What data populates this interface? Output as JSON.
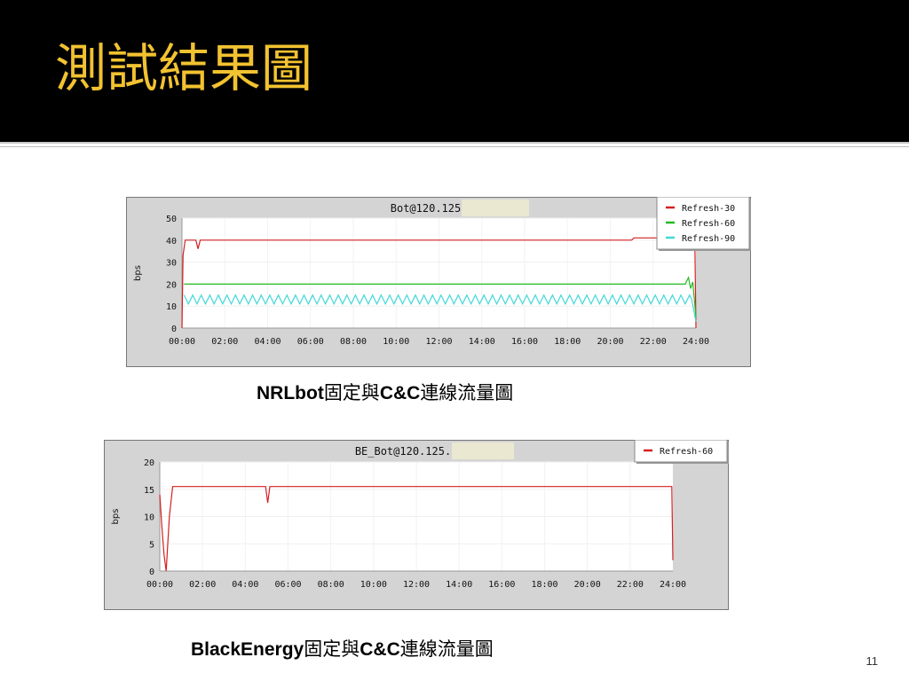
{
  "slide": {
    "title": "測試結果圖",
    "page_number": "11",
    "accent_color": "#f2c230",
    "background_color": "#000000"
  },
  "captions": [
    {
      "part1": "NRLbot",
      "part2": "固定與",
      "part3": "C&C",
      "part4": "連線流量圖"
    },
    {
      "part1": "BlackEnergy",
      "part2": "固定與",
      "part3": "C&C",
      "part4": "連線流量圖"
    }
  ],
  "chart_data": [
    {
      "type": "line",
      "title": "Bot@120.125",
      "ylabel": "bps",
      "xlabel": "",
      "x_ticks": [
        "00:00",
        "02:00",
        "04:00",
        "06:00",
        "08:00",
        "10:00",
        "12:00",
        "14:00",
        "16:00",
        "18:00",
        "20:00",
        "22:00",
        "24:00"
      ],
      "y_ticks": [
        0,
        10,
        20,
        30,
        40,
        50
      ],
      "xlim": [
        0,
        24
      ],
      "ylim": [
        0,
        50
      ],
      "grid": true,
      "legend_position": "top-right",
      "series": [
        {
          "name": "Refresh-30",
          "color": "#d42020",
          "points": [
            [
              0,
              0
            ],
            [
              0.05,
              33
            ],
            [
              0.15,
              40
            ],
            [
              0.65,
              40
            ],
            [
              0.75,
              36
            ],
            [
              0.85,
              40
            ],
            [
              21.0,
              40
            ],
            [
              21.1,
              41
            ],
            [
              23.9,
              41
            ],
            [
              23.95,
              38
            ],
            [
              24.0,
              0
            ]
          ]
        },
        {
          "name": "Refresh-60",
          "color": "#22bb22",
          "points": [
            [
              0.1,
              20
            ],
            [
              23.5,
              20
            ],
            [
              23.65,
              23
            ],
            [
              23.75,
              18
            ],
            [
              23.85,
              21
            ],
            [
              24.0,
              5
            ]
          ]
        },
        {
          "name": "Refresh-90",
          "color": "#44d8d8",
          "oscillation": {
            "start": 0.1,
            "end": 23.8,
            "period": 0.4,
            "low": 11,
            "high": 15
          },
          "points": [
            [
              23.8,
              13
            ],
            [
              24.0,
              3
            ]
          ]
        }
      ]
    },
    {
      "type": "line",
      "title": "BE_Bot@120.125.",
      "ylabel": "bps",
      "xlabel": "",
      "x_ticks": [
        "00:00",
        "02:00",
        "04:00",
        "06:00",
        "08:00",
        "10:00",
        "12:00",
        "14:00",
        "16:00",
        "18:00",
        "20:00",
        "22:00",
        "24:00"
      ],
      "y_ticks": [
        0,
        5,
        10,
        15,
        20
      ],
      "xlim": [
        0,
        24
      ],
      "ylim": [
        0,
        20
      ],
      "grid": true,
      "legend_position": "top-right",
      "series": [
        {
          "name": "Refresh-60",
          "color": "#d42020",
          "points": [
            [
              0,
              14
            ],
            [
              0.1,
              8
            ],
            [
              0.2,
              3
            ],
            [
              0.3,
              0
            ],
            [
              0.45,
              10
            ],
            [
              0.6,
              15.5
            ],
            [
              4.95,
              15.5
            ],
            [
              5.05,
              12.5
            ],
            [
              5.15,
              15.5
            ],
            [
              23.95,
              15.5
            ],
            [
              24.0,
              2
            ]
          ]
        }
      ]
    }
  ]
}
